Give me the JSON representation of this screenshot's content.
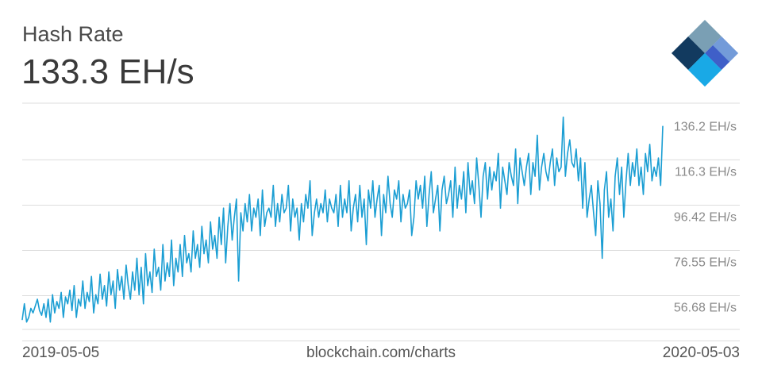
{
  "header": {
    "title": "Hash Rate",
    "current_value": "133.3 EH/s"
  },
  "footer": {
    "start_date": "2019-05-05",
    "source": "blockchain.com/charts",
    "end_date": "2020-05-03"
  },
  "colors": {
    "line": "#1b9ed3",
    "grid": "#dddddd",
    "tick_text": "#8a8a8a"
  },
  "icons": {
    "logo": "blockchain-logo-icon"
  },
  "chart_data": {
    "type": "line",
    "x_range": [
      "2019-05-05",
      "2020-05-03"
    ],
    "y_unit": "EH/s",
    "ylim": [
      46.75,
      146.1
    ],
    "y_ticks": [
      {
        "value": 136.2,
        "label": "136.2 EH/s"
      },
      {
        "value": 116.3,
        "label": "116.3 EH/s"
      },
      {
        "value": 96.42,
        "label": "96.42 EH/s"
      },
      {
        "value": 76.55,
        "label": "76.55 EH/s"
      },
      {
        "value": 56.68,
        "label": "56.68 EH/s"
      }
    ],
    "grid": true,
    "series": [
      {
        "values": [
          51,
          58,
          50,
          52,
          56,
          54,
          57,
          60,
          55,
          53,
          58,
          52,
          60,
          50,
          62,
          54,
          59,
          56,
          63,
          52,
          61,
          58,
          64,
          55,
          66,
          52,
          60,
          57,
          68,
          56,
          63,
          59,
          70,
          54,
          62,
          58,
          71,
          60,
          66,
          57,
          72,
          62,
          68,
          56,
          73,
          64,
          70,
          60,
          75,
          66,
          60,
          72,
          64,
          78,
          62,
          74,
          58,
          80,
          66,
          72,
          63,
          82,
          70,
          74,
          64,
          84,
          68,
          76,
          70,
          86,
          66,
          78,
          72,
          84,
          70,
          88,
          76,
          80,
          72,
          90,
          78,
          84,
          74,
          92,
          80,
          86,
          76,
          94,
          82,
          88,
          78,
          96,
          84,
          100,
          76,
          92,
          102,
          86,
          96,
          104,
          68,
          98,
          90,
          102,
          94,
          106,
          90,
          100,
          96,
          104,
          88,
          108,
          92,
          98,
          100,
          96,
          110,
          92,
          102,
          94,
          106,
          98,
          100,
          110,
          90,
          104,
          96,
          100,
          86,
          102,
          94,
          106,
          100,
          112,
          88,
          98,
          104,
          96,
          102,
          98,
          108,
          94,
          104,
          100,
          98,
          106,
          92,
          110,
          96,
          104,
          98,
          112,
          90,
          100,
          106,
          94,
          110,
          96,
          104,
          84,
          108,
          100,
          112,
          96,
          104,
          110,
          88,
          106,
          98,
          114,
          102,
          96,
          108,
          104,
          112,
          94,
          106,
          100,
          102,
          108,
          88,
          96,
          112,
          104,
          110,
          100,
          114,
          92,
          106,
          116,
          98,
          104,
          110,
          90,
          108,
          114,
          102,
          106,
          112,
          96,
          118,
          100,
          110,
          104,
          116,
          98,
          120,
          106,
          112,
          102,
          122,
          110,
          96,
          114,
          120,
          104,
          118,
          108,
          116,
          112,
          124,
          100,
          118,
          112,
          106,
          120,
          114,
          110,
          126,
          102,
          122,
          116,
          110,
          118,
          124,
          106,
          120,
          114,
          132,
          108,
          118,
          124,
          116,
          112,
          120,
          126,
          110,
          122,
          116,
          118,
          140,
          114,
          124,
          130,
          120,
          118,
          126,
          112,
          122,
          100,
          120,
          96,
          104,
          110,
          98,
          88,
          112,
          102,
          78,
          108,
          116,
          96,
          104,
          90,
          114,
          122,
          106,
          118,
          96,
          112,
          124,
          110,
          120,
          114,
          126,
          110,
          118,
          106,
          124,
          116,
          128,
          112,
          118,
          114,
          122,
          110,
          136
        ]
      }
    ]
  }
}
